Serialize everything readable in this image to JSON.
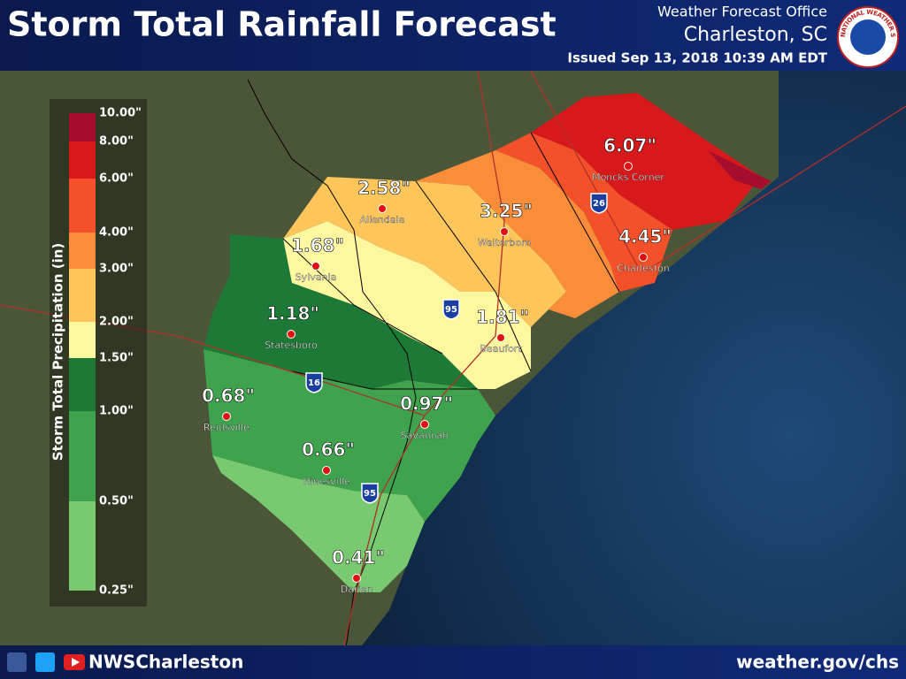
{
  "header": {
    "title": "Storm Total Rainfall Forecast",
    "office": "Weather Forecast Office",
    "location": "Charleston, SC",
    "issued": "Issued Sep 13, 2018 10:39 AM EDT",
    "logo_text": "NATIONAL WEATHER SERVICE"
  },
  "legend": {
    "title": "Storm Total Precipitation (in)",
    "ticks": [
      "10.00\"",
      "8.00\"",
      "6.00\"",
      "4.00\"",
      "3.00\"",
      "2.00\"",
      "1.50\"",
      "1.00\"",
      "0.50\"",
      "0.25\""
    ],
    "colors": [
      "#a50d2e",
      "#d7191c",
      "#f4502a",
      "#f98d3a",
      "#fdc55a",
      "#fdf7a0",
      "#1d7a36",
      "#3fa34d",
      "#78c96f"
    ]
  },
  "cities": [
    {
      "name": "Moncks Corner",
      "amount": "6.07\""
    },
    {
      "name": "Allendale",
      "amount": "2.58\""
    },
    {
      "name": "Walterboro",
      "amount": "3.25\""
    },
    {
      "name": "Charleston",
      "amount": "4.45\""
    },
    {
      "name": "Sylvania",
      "amount": "1.68\""
    },
    {
      "name": "Beaufort",
      "amount": "1.81\""
    },
    {
      "name": "Statesboro",
      "amount": "1.18\""
    },
    {
      "name": "Reidsville",
      "amount": "0.68\""
    },
    {
      "name": "Savannah",
      "amount": "0.97\""
    },
    {
      "name": "Hinesville",
      "amount": "0.66\""
    },
    {
      "name": "Darien",
      "amount": "0.41\""
    }
  ],
  "interstates": [
    "26",
    "95",
    "16",
    "95"
  ],
  "footer": {
    "handle": "NWSCharleston",
    "website": "weather.gov/chs"
  }
}
